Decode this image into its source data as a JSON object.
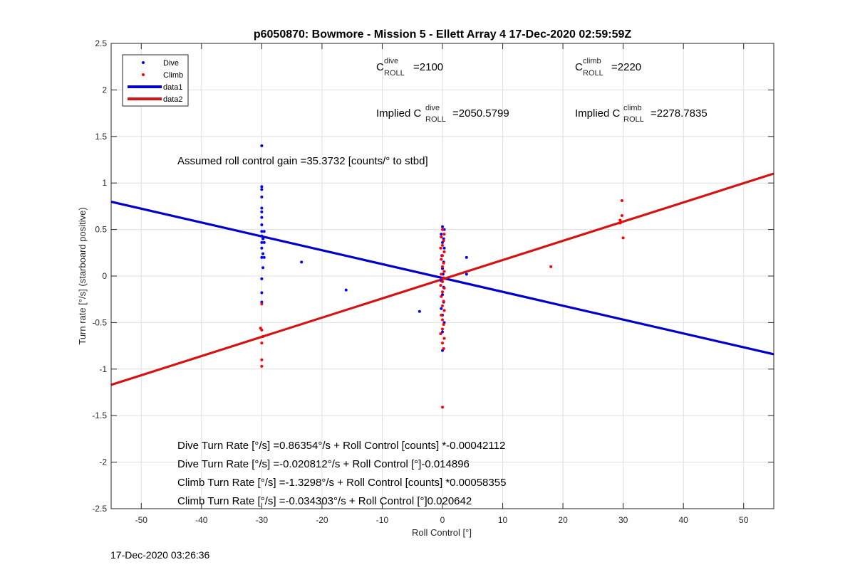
{
  "chart_data": {
    "type": "scatter",
    "title": "p6050870: Bowmore - Mission 5 - Ellett Array 4 17-Dec-2020 02:59:59Z",
    "xlabel": "Roll Control [°]",
    "ylabel": "Turn rate [°/s] (starboard positive)",
    "xlim": [
      -55,
      55
    ],
    "ylim": [
      -2.5,
      2.5
    ],
    "xticks": [
      -50,
      -40,
      -30,
      -20,
      -10,
      0,
      10,
      20,
      30,
      40,
      50
    ],
    "yticks": [
      -2.5,
      -2,
      -1.5,
      -1,
      -0.5,
      0,
      0.5,
      1,
      1.5,
      2,
      2.5
    ],
    "xtick_labels": [
      "-50",
      "-40",
      "-30",
      "-20",
      "-10",
      "0",
      "10",
      "20",
      "30",
      "40",
      "50"
    ],
    "ytick_labels": [
      "-2.5",
      "-2",
      "-1.5",
      "-1",
      "-0.5",
      "0",
      "0.5",
      "1",
      "1.5",
      "2",
      "2.5"
    ],
    "grid": true,
    "legend_position": "top-left",
    "series": [
      {
        "name": "Dive",
        "kind": "points",
        "color": "#0000ff",
        "points": [
          [
            -30,
            1.4
          ],
          [
            -30,
            0.96
          ],
          [
            -30,
            0.93
          ],
          [
            -30,
            0.85
          ],
          [
            -30,
            0.73
          ],
          [
            -30,
            0.69
          ],
          [
            -30,
            0.63
          ],
          [
            -30,
            0.55
          ],
          [
            -30,
            0.48
          ],
          [
            -29.6,
            0.48
          ],
          [
            -30,
            0.43
          ],
          [
            -29.8,
            0.4
          ],
          [
            -30,
            0.36
          ],
          [
            -29.6,
            0.36
          ],
          [
            -30,
            0.3
          ],
          [
            -29.8,
            0.24
          ],
          [
            -30,
            0.2
          ],
          [
            -29.6,
            0.2
          ],
          [
            -29.8,
            0.09
          ],
          [
            -30,
            -0.03
          ],
          [
            -30,
            -0.18
          ],
          [
            -30,
            -0.28
          ],
          [
            -23.4,
            0.15
          ],
          [
            -16,
            -0.15
          ],
          [
            -3.8,
            -0.38
          ],
          [
            0,
            0.53
          ],
          [
            0.3,
            0.5
          ],
          [
            -0.2,
            0.45
          ],
          [
            0.2,
            0.4
          ],
          [
            0,
            0.36
          ],
          [
            0.3,
            0.3
          ],
          [
            -0.1,
            0.22
          ],
          [
            0.2,
            0.15
          ],
          [
            0,
            0.08
          ],
          [
            0.1,
            0.02
          ],
          [
            -0.2,
            -0.05
          ],
          [
            0.2,
            -0.12
          ],
          [
            0,
            -0.2
          ],
          [
            0.2,
            -0.28
          ],
          [
            -0.2,
            -0.35
          ],
          [
            0,
            -0.42
          ],
          [
            0.3,
            -0.5
          ],
          [
            0,
            -0.6
          ],
          [
            0,
            -0.8
          ],
          [
            4,
            0.2
          ],
          [
            4,
            0.02
          ]
        ]
      },
      {
        "name": "Climb",
        "kind": "points",
        "color": "#ff0000",
        "points": [
          [
            -30,
            -0.3
          ],
          [
            -30.2,
            -0.56
          ],
          [
            -30,
            -0.58
          ],
          [
            -29.8,
            -0.65
          ],
          [
            -30,
            -0.72
          ],
          [
            -30,
            -0.9
          ],
          [
            -30,
            -0.97
          ],
          [
            18,
            0.1
          ],
          [
            29.5,
            0.6
          ],
          [
            29.5,
            0.57
          ],
          [
            29.8,
            0.65
          ],
          [
            29.8,
            0.81
          ],
          [
            30,
            0.41
          ],
          [
            0,
            0.5
          ],
          [
            0.3,
            0.45
          ],
          [
            -0.2,
            0.42
          ],
          [
            0.2,
            0.38
          ],
          [
            0,
            0.33
          ],
          [
            -0.3,
            0.3
          ],
          [
            0.3,
            0.26
          ],
          [
            0,
            0.22
          ],
          [
            -0.2,
            0.18
          ],
          [
            0.2,
            0.14
          ],
          [
            0,
            0.1
          ],
          [
            0.3,
            0.05
          ],
          [
            -0.2,
            0.02
          ],
          [
            0.2,
            -0.02
          ],
          [
            0,
            -0.06
          ],
          [
            -0.3,
            -0.1
          ],
          [
            0.3,
            -0.13
          ],
          [
            0,
            -0.17
          ],
          [
            -0.2,
            -0.22
          ],
          [
            0.2,
            -0.27
          ],
          [
            0,
            -0.32
          ],
          [
            0.3,
            -0.37
          ],
          [
            -0.2,
            -0.42
          ],
          [
            0,
            -0.47
          ],
          [
            0.2,
            -0.52
          ],
          [
            0,
            -0.57
          ],
          [
            -0.3,
            -0.62
          ],
          [
            0.3,
            -0.67
          ],
          [
            0,
            -0.72
          ],
          [
            0.2,
            -0.78
          ],
          [
            0,
            -1.41
          ]
        ]
      },
      {
        "name": "data1",
        "kind": "line",
        "color": "#0000c8",
        "intercept": -0.020812,
        "slope": -0.014896,
        "x_range": [
          -55,
          55
        ]
      },
      {
        "name": "data2",
        "kind": "line",
        "color": "#d21414",
        "intercept": -0.034303,
        "slope": 0.020642,
        "x_range": [
          -55,
          55
        ]
      }
    ],
    "annotations": {
      "c_dive": {
        "base": "C",
        "sup": "dive",
        "sub": "ROLL",
        "value": "=2100"
      },
      "c_climb": {
        "base": "C",
        "sup": "climb",
        "sub": "ROLL",
        "value": "=2220"
      },
      "implied_dive": {
        "prefix": "Implied C",
        "sup": "dive",
        "sub": "ROLL",
        "value": "=2050.5799"
      },
      "implied_climb": {
        "prefix": "Implied C",
        "sup": "climb",
        "sub": "ROLL",
        "value": "=2278.7835"
      },
      "gain": "Assumed roll control gain =35.3732 [counts/° to stbd]",
      "eq1": "Dive Turn Rate [°/s] =0.86354°/s + Roll Control [counts] *-0.00042112",
      "eq2": "Dive Turn Rate [°/s] =-0.020812°/s + Roll Control [°]-0.014896",
      "eq3": "Climb Turn Rate [°/s] =-1.3298°/s + Roll Control [counts] *0.00058355",
      "eq4": "Climb Turn Rate [°/s] =-0.034303°/s + Roll Control [°]0.020642"
    }
  },
  "footer_timestamp": "17-Dec-2020 03:26:36"
}
